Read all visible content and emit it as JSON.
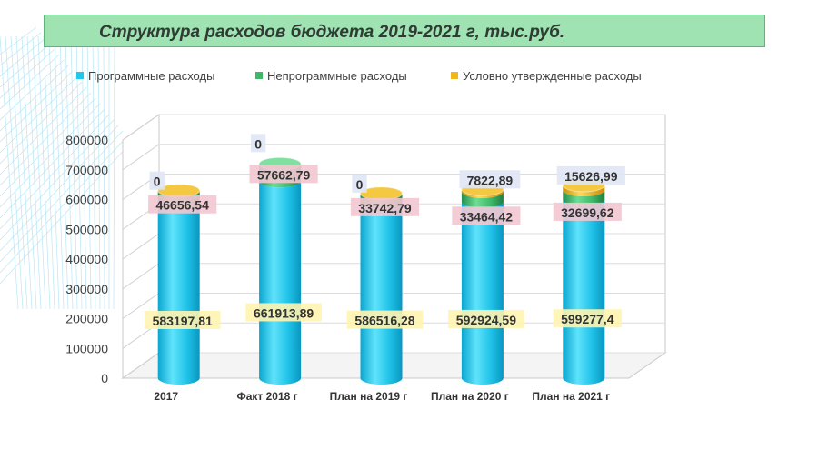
{
  "title": "Структура расходов бюджета 2019-2021 г, тыс.руб.",
  "legend": [
    {
      "label": "Программные расходы",
      "color": "#21c8ec"
    },
    {
      "label": "Непрограммные расходы",
      "color": "#3fb86a"
    },
    {
      "label": "Условно утвержденные расходы",
      "color": "#f0b818"
    }
  ],
  "chart_data": {
    "type": "bar",
    "stacked": true,
    "style": "3d-cylinder",
    "categories": [
      "2017",
      "Факт  2018 г",
      "План на 2019 г",
      "План на 2020 г",
      "План на 2021 г"
    ],
    "ylim": [
      0,
      800000
    ],
    "yticks": [
      "0",
      "100000",
      "200000",
      "300000",
      "400000",
      "500000",
      "600000",
      "700000",
      "800000"
    ],
    "series": [
      {
        "name": "Программные расходы",
        "values": [
          583197.81,
          661913.89,
          586516.28,
          592924.59,
          599277.4
        ],
        "labels": [
          "583197,81",
          "661913,89",
          "586516,28",
          "592924,59",
          "599277,4"
        ]
      },
      {
        "name": "Непрограммные расходы",
        "values": [
          46656.54,
          57662.79,
          33742.79,
          33464.42,
          32699.62
        ],
        "labels": [
          "46656,54",
          "57662,79",
          "33742,79",
          "33464,42",
          "32699,62"
        ]
      },
      {
        "name": "Условно утвержденные расходы",
        "values": [
          0,
          0,
          0,
          7822.89,
          15626.99
        ],
        "labels": [
          "0",
          "0",
          "0",
          "7822,89",
          "15626,99"
        ]
      }
    ]
  }
}
